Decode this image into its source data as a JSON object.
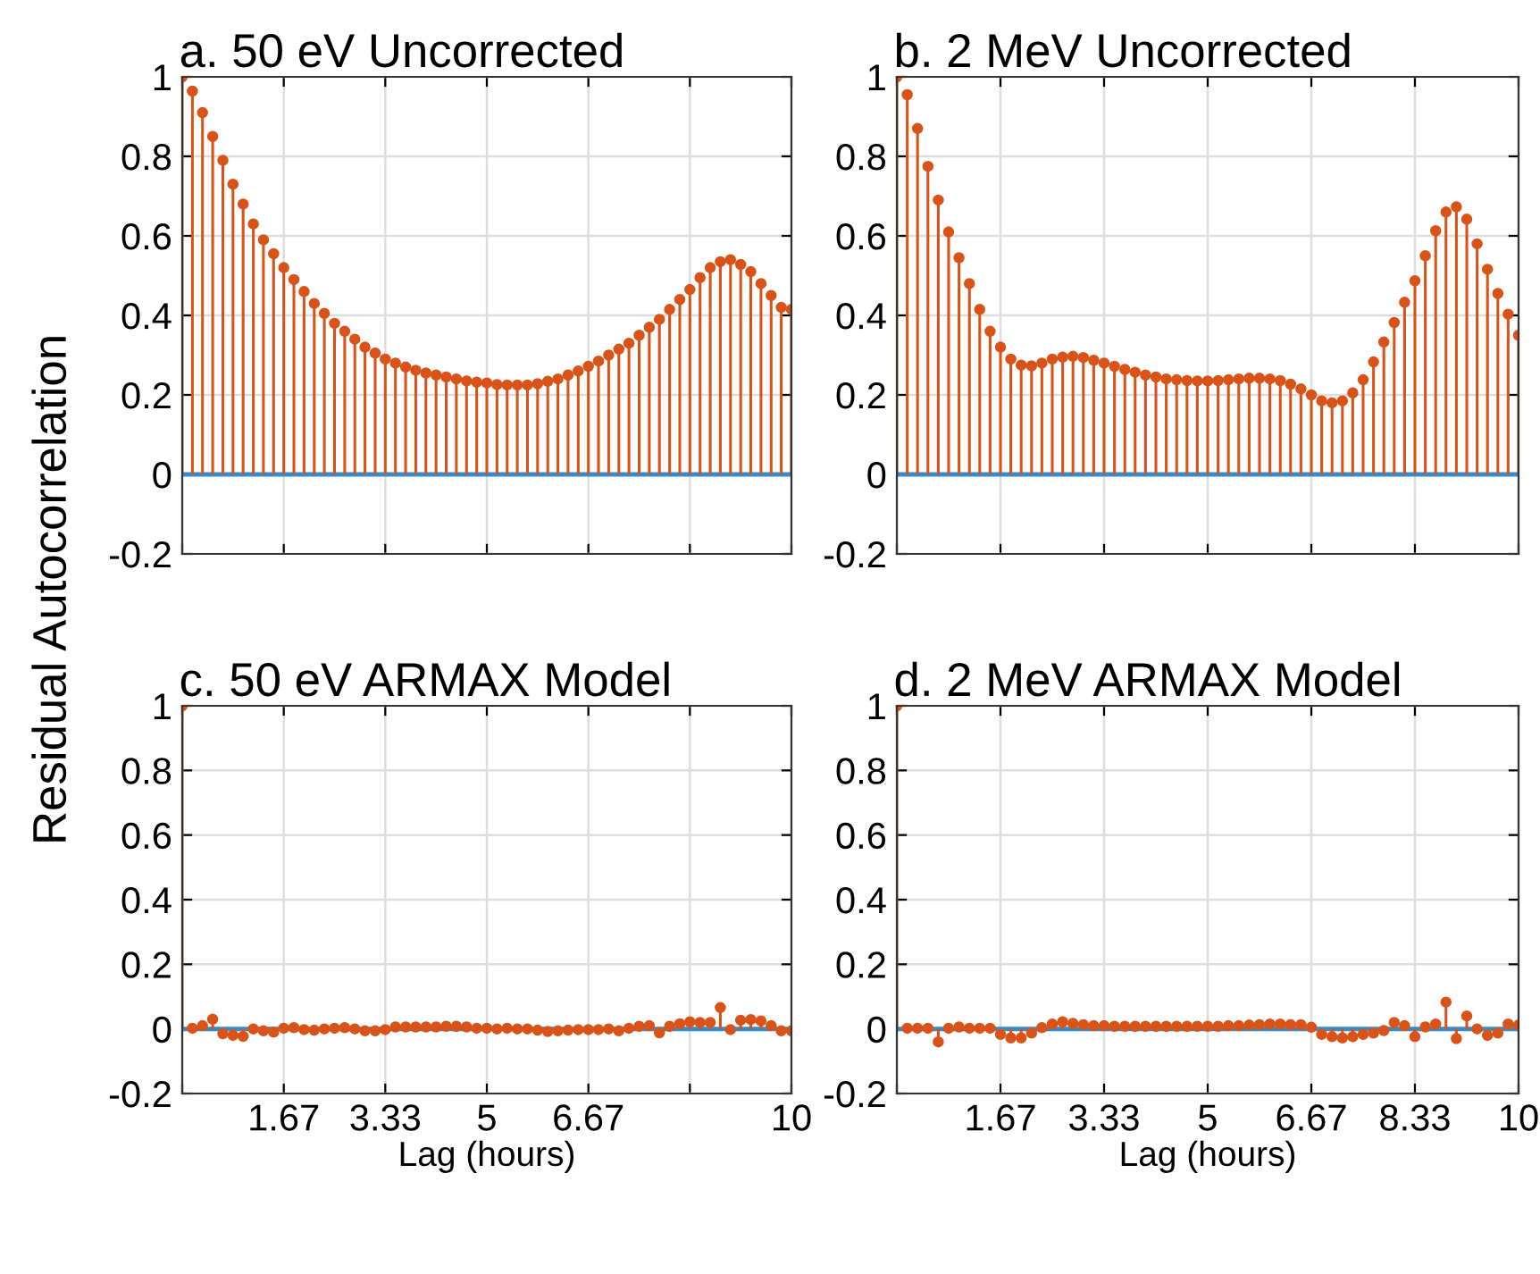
{
  "chart_data": [
    {
      "type": "lollipop",
      "title": "a. 50 eV Uncorrected",
      "ylabel": "Residual Autocorrelation",
      "tick_labels": "y",
      "grid": true,
      "marker": "circle",
      "x": [
        0,
        0.167,
        0.333,
        0.5,
        0.667,
        0.833,
        1,
        1.167,
        1.333,
        1.5,
        1.667,
        1.833,
        2,
        2.167,
        2.333,
        2.5,
        2.667,
        2.833,
        3,
        3.167,
        3.333,
        3.5,
        3.667,
        3.833,
        4,
        4.167,
        4.333,
        4.5,
        4.667,
        4.833,
        5,
        5.167,
        5.333,
        5.5,
        5.667,
        5.833,
        6,
        6.167,
        6.333,
        6.5,
        6.667,
        6.833,
        7,
        7.167,
        7.333,
        7.5,
        7.667,
        7.833,
        8,
        8.167,
        8.333,
        8.5,
        8.667,
        8.833,
        9,
        9.167,
        9.333,
        9.5,
        9.667,
        9.833,
        10
      ],
      "series": [
        {
          "color": "#d95319",
          "values": [
            1.0,
            0.964,
            0.91,
            0.85,
            0.79,
            0.73,
            0.68,
            0.63,
            0.59,
            0.555,
            0.52,
            0.49,
            0.46,
            0.43,
            0.405,
            0.38,
            0.36,
            0.34,
            0.32,
            0.305,
            0.29,
            0.28,
            0.27,
            0.262,
            0.255,
            0.25,
            0.245,
            0.24,
            0.235,
            0.232,
            0.23,
            0.226,
            0.225,
            0.225,
            0.225,
            0.228,
            0.234,
            0.24,
            0.25,
            0.26,
            0.272,
            0.285,
            0.3,
            0.315,
            0.33,
            0.35,
            0.37,
            0.39,
            0.415,
            0.44,
            0.465,
            0.495,
            0.52,
            0.535,
            0.54,
            0.528,
            0.51,
            0.48,
            0.45,
            0.42,
            0.415
          ]
        }
      ],
      "ref_lines": [
        {
          "axis": "y",
          "value": 0,
          "color": "#3a8ac8"
        }
      ],
      "xlim": [
        0,
        10
      ],
      "xticks": [
        {
          "value": 0,
          "label": null
        },
        {
          "value": 1.667,
          "label": null
        },
        {
          "value": 3.333,
          "label": null
        },
        {
          "value": 5,
          "label": null
        },
        {
          "value": 6.667,
          "label": null
        },
        {
          "value": 8.333,
          "label": null
        },
        {
          "value": 10,
          "label": null
        }
      ],
      "ylim": [
        -0.2,
        1
      ],
      "yticks": [
        -0.2,
        0,
        0.2,
        0.4,
        0.6,
        0.8,
        1
      ]
    },
    {
      "type": "lollipop",
      "title": "b. 2 MeV Uncorrected",
      "tick_labels": "y",
      "grid": true,
      "marker": "circle",
      "x": [
        0,
        0.167,
        0.333,
        0.5,
        0.667,
        0.833,
        1,
        1.167,
        1.333,
        1.5,
        1.667,
        1.833,
        2,
        2.167,
        2.333,
        2.5,
        2.667,
        2.833,
        3,
        3.167,
        3.333,
        3.5,
        3.667,
        3.833,
        4,
        4.167,
        4.333,
        4.5,
        4.667,
        4.833,
        5,
        5.167,
        5.333,
        5.5,
        5.667,
        5.833,
        6,
        6.167,
        6.333,
        6.5,
        6.667,
        6.833,
        7,
        7.167,
        7.333,
        7.5,
        7.667,
        7.833,
        8,
        8.167,
        8.333,
        8.5,
        8.667,
        8.833,
        9,
        9.167,
        9.333,
        9.5,
        9.667,
        9.833,
        10
      ],
      "series": [
        {
          "color": "#d95319",
          "values": [
            1.0,
            0.955,
            0.87,
            0.775,
            0.69,
            0.61,
            0.545,
            0.48,
            0.415,
            0.36,
            0.32,
            0.29,
            0.275,
            0.273,
            0.28,
            0.29,
            0.295,
            0.297,
            0.294,
            0.287,
            0.28,
            0.272,
            0.264,
            0.257,
            0.25,
            0.245,
            0.24,
            0.238,
            0.236,
            0.235,
            0.235,
            0.236,
            0.238,
            0.24,
            0.242,
            0.242,
            0.24,
            0.236,
            0.227,
            0.215,
            0.2,
            0.185,
            0.18,
            0.185,
            0.205,
            0.238,
            0.283,
            0.333,
            0.382,
            0.433,
            0.487,
            0.55,
            0.613,
            0.66,
            0.673,
            0.642,
            0.58,
            0.516,
            0.455,
            0.403,
            0.35
          ]
        }
      ],
      "ref_lines": [
        {
          "axis": "y",
          "value": 0,
          "color": "#3a8ac8"
        }
      ],
      "xlim": [
        0,
        10
      ],
      "xticks": [
        {
          "value": 0,
          "label": null
        },
        {
          "value": 1.667,
          "label": null
        },
        {
          "value": 3.333,
          "label": null
        },
        {
          "value": 5,
          "label": null
        },
        {
          "value": 6.667,
          "label": null
        },
        {
          "value": 8.333,
          "label": null
        },
        {
          "value": 10,
          "label": null
        }
      ],
      "ylim": [
        -0.2,
        1
      ],
      "yticks": [
        -0.2,
        0,
        0.2,
        0.4,
        0.6,
        0.8,
        1
      ]
    },
    {
      "type": "lollipop",
      "title": "c. 50 eV ARMAX Model",
      "xlabel": "Lag (hours)",
      "grid": true,
      "marker": "circle",
      "x": [
        0,
        0.167,
        0.333,
        0.5,
        0.667,
        0.833,
        1,
        1.167,
        1.333,
        1.5,
        1.667,
        1.833,
        2,
        2.167,
        2.333,
        2.5,
        2.667,
        2.833,
        3,
        3.167,
        3.333,
        3.5,
        3.667,
        3.833,
        4,
        4.167,
        4.333,
        4.5,
        4.667,
        4.833,
        5,
        5.167,
        5.333,
        5.5,
        5.667,
        5.833,
        6,
        6.167,
        6.333,
        6.5,
        6.667,
        6.833,
        7,
        7.167,
        7.333,
        7.5,
        7.667,
        7.833,
        8,
        8.167,
        8.333,
        8.5,
        8.667,
        8.833,
        9,
        9.167,
        9.333,
        9.5,
        9.667,
        9.833,
        10
      ],
      "series": [
        {
          "color": "#d95319",
          "values": [
            1.0,
            0.002,
            0.01,
            0.03,
            -0.015,
            -0.02,
            -0.023,
            0,
            -0.006,
            -0.01,
            0.002,
            0.004,
            -0.002,
            -0.004,
            0,
            0.002,
            0.004,
            0,
            -0.006,
            -0.006,
            -0.002,
            0.006,
            0.006,
            0.006,
            0.006,
            0.006,
            0.008,
            0.008,
            0.006,
            0.002,
            0.002,
            0,
            0.002,
            0,
            0,
            -0.004,
            -0.008,
            -0.006,
            -0.004,
            -0.002,
            -0.002,
            -0.002,
            0,
            -0.006,
            0.002,
            0.008,
            0.01,
            -0.012,
            0.008,
            0.016,
            0.022,
            0.02,
            0.02,
            0.066,
            -0.002,
            0.027,
            0.029,
            0.025,
            0.01,
            -0.006,
            -0.006
          ]
        }
      ],
      "ref_lines": [
        {
          "axis": "y",
          "value": 0,
          "color": "#3a8ac8"
        }
      ],
      "xlim": [
        0,
        10
      ],
      "xticks": [
        {
          "value": 0,
          "label": null
        },
        {
          "value": 1.667,
          "label": "1.67"
        },
        {
          "value": 3.333,
          "label": "3.33"
        },
        5,
        {
          "value": 6.667,
          "label": "6.67"
        },
        {
          "value": 8.333,
          "label": null
        },
        10
      ],
      "ylim": [
        -0.2,
        1
      ],
      "yticks": [
        -0.2,
        0,
        0.2,
        0.4,
        0.6,
        0.8,
        1
      ]
    },
    {
      "type": "lollipop",
      "title": "d. 2 MeV ARMAX Model",
      "xlabel": "Lag (hours)",
      "grid": true,
      "marker": "circle",
      "x": [
        0,
        0.167,
        0.333,
        0.5,
        0.667,
        0.833,
        1,
        1.167,
        1.333,
        1.5,
        1.667,
        1.833,
        2,
        2.167,
        2.333,
        2.5,
        2.667,
        2.833,
        3,
        3.167,
        3.333,
        3.5,
        3.667,
        3.833,
        4,
        4.167,
        4.333,
        4.5,
        4.667,
        4.833,
        5,
        5.167,
        5.333,
        5.5,
        5.667,
        5.833,
        6,
        6.167,
        6.333,
        6.5,
        6.667,
        6.833,
        7,
        7.167,
        7.333,
        7.5,
        7.667,
        7.833,
        8,
        8.167,
        8.333,
        8.5,
        8.667,
        8.833,
        9,
        9.167,
        9.333,
        9.5,
        9.667,
        9.833,
        10
      ],
      "series": [
        {
          "color": "#d95319",
          "values": [
            1.0,
            0.002,
            0.002,
            0.002,
            -0.04,
            0.002,
            0.006,
            0.002,
            0.002,
            0.002,
            -0.017,
            -0.028,
            -0.028,
            -0.013,
            0.004,
            0.015,
            0.022,
            0.017,
            0.013,
            0.01,
            0.01,
            0.008,
            0.008,
            0.008,
            0.008,
            0.008,
            0.008,
            0.008,
            0.008,
            0.008,
            0.008,
            0.008,
            0.01,
            0.01,
            0.012,
            0.013,
            0.015,
            0.015,
            0.013,
            0.013,
            0.005,
            -0.017,
            -0.024,
            -0.028,
            -0.024,
            -0.017,
            -0.013,
            -0.005,
            0.02,
            0.01,
            -0.024,
            0.006,
            0.015,
            0.083,
            -0.03,
            0.04,
            0,
            -0.02,
            -0.013,
            0.015,
            0.012
          ]
        }
      ],
      "ref_lines": [
        {
          "axis": "y",
          "value": 0,
          "color": "#3a8ac8"
        }
      ],
      "xlim": [
        0,
        10
      ],
      "xticks": [
        {
          "value": 0,
          "label": null
        },
        {
          "value": 1.667,
          "label": "1.67"
        },
        {
          "value": 3.333,
          "label": "3.33"
        },
        5,
        {
          "value": 6.667,
          "label": "6.67"
        },
        {
          "value": 8.333,
          "label": "8.33"
        },
        10
      ],
      "ylim": [
        -0.2,
        1
      ],
      "yticks": [
        -0.2,
        0,
        0.2,
        0.4,
        0.6,
        0.8,
        1
      ]
    }
  ]
}
